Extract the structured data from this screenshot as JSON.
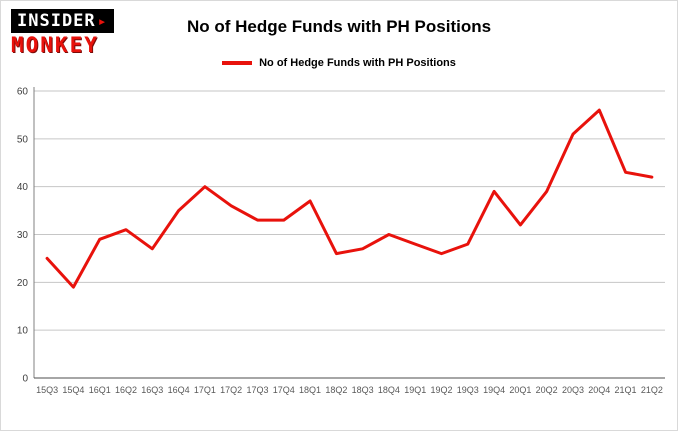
{
  "logo": {
    "line1": "INSIDER",
    "caret": "▸",
    "line2": "MONKEY"
  },
  "title": "No of Hedge Funds with PH Positions",
  "legend": {
    "label": "No of Hedge Funds with PH Positions",
    "color": "#e8120c"
  },
  "chart_data": {
    "type": "line",
    "title": "No of Hedge Funds with PH Positions",
    "categories": [
      "15Q3",
      "15Q4",
      "16Q1",
      "16Q2",
      "16Q3",
      "16Q4",
      "17Q1",
      "17Q2",
      "17Q3",
      "17Q4",
      "18Q1",
      "18Q2",
      "18Q3",
      "18Q4",
      "19Q1",
      "19Q2",
      "19Q3",
      "19Q4",
      "20Q1",
      "20Q2",
      "20Q3",
      "20Q4",
      "21Q1",
      "21Q2"
    ],
    "values": [
      25,
      19,
      29,
      31,
      27,
      35,
      40,
      36,
      33,
      33,
      37,
      26,
      27,
      30,
      28,
      26,
      28,
      39,
      32,
      39,
      51,
      56,
      43,
      42
    ],
    "xlabel": "",
    "ylabel": "",
    "ylim": [
      0,
      60
    ],
    "yticks": [
      0,
      10,
      20,
      30,
      40,
      50,
      60
    ],
    "grid": true,
    "legend_position": "top",
    "line_color": "#e8120c",
    "grid_color": "#c6c6c6",
    "axis_color": "#808080",
    "tick_label_color": "#595959"
  }
}
